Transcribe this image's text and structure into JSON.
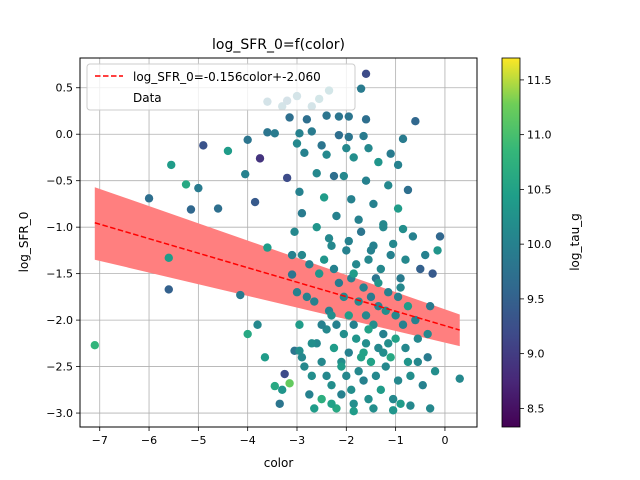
{
  "chart_data": {
    "type": "scatter",
    "title": "log_SFR_0=f(color)",
    "xlabel": "color",
    "ylabel": "log_SFR_0",
    "xlim": [
      -7.4,
      0.65
    ],
    "ylim": [
      -3.15,
      0.82
    ],
    "x_ticks": [
      -7,
      -6,
      -5,
      -4,
      -3,
      -2,
      -1,
      0
    ],
    "y_ticks": [
      -3.0,
      -2.5,
      -2.0,
      -1.5,
      -1.0,
      -0.5,
      0.0,
      0.5
    ],
    "grid": true,
    "legend": {
      "placement": "top-left",
      "entries": [
        "log_SFR_0=-0.156color+-2.060",
        "Data"
      ]
    },
    "fit_line": {
      "slope": -0.156,
      "intercept": -2.06,
      "x_range": [
        -7.1,
        0.3
      ],
      "color": "#ff0000",
      "style": "dashed"
    },
    "confidence_band": {
      "color": "#ff7f7f",
      "x": [
        -7.1,
        0.3
      ],
      "lower": [
        -1.35,
        -2.28
      ],
      "upper": [
        -0.57,
        -1.94
      ]
    },
    "colorbar": {
      "label": "log_tau_g",
      "range": [
        8.33,
        11.7
      ],
      "ticks": [
        8.5,
        9.0,
        9.5,
        10.0,
        10.5,
        11.0,
        11.5
      ],
      "colormap": "viridis"
    },
    "points": [
      [
        -7.1,
        -2.27,
        10.8
      ],
      [
        -6.0,
        -0.69,
        9.7
      ],
      [
        -5.6,
        -1.67,
        9.5
      ],
      [
        -5.6,
        -1.33,
        10.4
      ],
      [
        -5.55,
        -0.33,
        10.4
      ],
      [
        -5.25,
        -0.54,
        10.6
      ],
      [
        -5.15,
        -0.81,
        9.6
      ],
      [
        -5.0,
        -0.58,
        9.9
      ],
      [
        -4.9,
        -0.12,
        9.3
      ],
      [
        -4.6,
        -0.8,
        9.7
      ],
      [
        -4.4,
        -0.18,
        10.4
      ],
      [
        -4.15,
        -1.73,
        9.9
      ],
      [
        -4.05,
        -0.43,
        10.0
      ],
      [
        -4.0,
        -2.15,
        10.6
      ],
      [
        -3.8,
        -2.05,
        10.1
      ],
      [
        -3.75,
        -0.26,
        8.9
      ],
      [
        -3.85,
        -0.73,
        9.4
      ],
      [
        -3.65,
        -2.4,
        10.4
      ],
      [
        -3.6,
        -1.22,
        10.4
      ],
      [
        -3.45,
        -2.71,
        10.6
      ],
      [
        -3.25,
        -2.58,
        9.2
      ],
      [
        -3.2,
        -0.47,
        9.2
      ],
      [
        -3.15,
        -2.68,
        11.2
      ],
      [
        -3.1,
        -1.3,
        10.0
      ],
      [
        -3.1,
        -1.51,
        9.8
      ],
      [
        -3.05,
        -2.33,
        9.8
      ],
      [
        -3.0,
        -1.7,
        10.0
      ],
      [
        -2.95,
        -2.05,
        10.4
      ],
      [
        -2.95,
        -2.33,
        10.2
      ],
      [
        -2.9,
        -1.3,
        10.1
      ],
      [
        -2.9,
        -0.85,
        9.9
      ],
      [
        -2.85,
        -2.5,
        10.1
      ],
      [
        -2.8,
        -1.75,
        10.0
      ],
      [
        -2.75,
        -2.8,
        10.0
      ],
      [
        -2.7,
        -2.6,
        10.2
      ],
      [
        -2.65,
        -1.8,
        10.0
      ],
      [
        -2.6,
        -2.25,
        10.1
      ],
      [
        -2.55,
        -1.5,
        10.3
      ],
      [
        -2.5,
        -2.45,
        10.1
      ],
      [
        -2.5,
        -2.85,
        10.7
      ],
      [
        -2.45,
        -1.35,
        10.3
      ],
      [
        -2.4,
        -2.1,
        10.1
      ],
      [
        -2.4,
        -2.6,
        10.1
      ],
      [
        -2.35,
        -1.9,
        10.0
      ],
      [
        -2.3,
        -1.2,
        10.1
      ],
      [
        -2.3,
        -2.7,
        10.2
      ],
      [
        -2.25,
        -0.45,
        9.7
      ],
      [
        -2.25,
        -2.3,
        10.4
      ],
      [
        -2.2,
        -2.05,
        10.0
      ],
      [
        -2.2,
        -2.95,
        10.6
      ],
      [
        -2.15,
        -1.6,
        9.9
      ],
      [
        -2.1,
        -2.45,
        10.2
      ],
      [
        -2.1,
        -2.8,
        10.0
      ],
      [
        -2.05,
        -1.75,
        10.1
      ],
      [
        -2.05,
        -2.15,
        10.2
      ],
      [
        -2.0,
        -1.25,
        10.0
      ],
      [
        -2.0,
        -2.6,
        10.1
      ],
      [
        -1.95,
        -1.95,
        10.4
      ],
      [
        -1.95,
        -2.35,
        10.0
      ],
      [
        -1.9,
        -1.55,
        10.0
      ],
      [
        -1.9,
        -2.75,
        10.2
      ],
      [
        -1.85,
        -2.05,
        10.0
      ],
      [
        -1.85,
        -2.9,
        10.2
      ],
      [
        -1.8,
        -1.4,
        10.1
      ],
      [
        -1.8,
        -2.2,
        10.3
      ],
      [
        -1.75,
        -1.8,
        10.1
      ],
      [
        -1.75,
        -2.55,
        10.1
      ],
      [
        -1.7,
        -1.05,
        9.8
      ],
      [
        -1.7,
        -2.4,
        10.5
      ],
      [
        -1.65,
        -1.65,
        10.0
      ],
      [
        -1.65,
        -2.65,
        10.0
      ],
      [
        -1.6,
        -1.95,
        10.1
      ],
      [
        -1.6,
        -2.25,
        10.2
      ],
      [
        -1.55,
        -1.35,
        10.1
      ],
      [
        -1.55,
        -2.85,
        10.2
      ],
      [
        -1.5,
        -2.45,
        10.5
      ],
      [
        -1.5,
        -1.75,
        9.9
      ],
      [
        -1.45,
        -2.05,
        10.2
      ],
      [
        -1.45,
        -1.2,
        10.0
      ],
      [
        -1.4,
        -2.6,
        10.1
      ],
      [
        -1.4,
        -1.55,
        9.8
      ],
      [
        -1.35,
        -2.3,
        10.1
      ],
      [
        -1.35,
        -1.85,
        10.0
      ],
      [
        -1.3,
        -2.75,
        10.4
      ],
      [
        -1.3,
        -1.45,
        10.1
      ],
      [
        -1.25,
        -2.15,
        10.0
      ],
      [
        -1.25,
        -1.0,
        10.1
      ],
      [
        -1.2,
        -1.9,
        10.2
      ],
      [
        -1.2,
        -2.5,
        10.1
      ],
      [
        -1.15,
        -1.7,
        10.0
      ],
      [
        -1.1,
        -2.4,
        10.6
      ],
      [
        -1.1,
        -1.3,
        10.0
      ],
      [
        -1.05,
        -2.85,
        10.1
      ],
      [
        -1.0,
        -1.95,
        10.1
      ],
      [
        -1.0,
        -2.2,
        10.5
      ],
      [
        -0.95,
        -1.75,
        10.0
      ],
      [
        -0.95,
        -2.65,
        10.1
      ],
      [
        -0.9,
        -1.55,
        9.9
      ],
      [
        -0.9,
        -2.9,
        10.4
      ],
      [
        -0.85,
        -2.05,
        10.0
      ],
      [
        -0.8,
        -1.35,
        10.1
      ],
      [
        -0.8,
        -2.3,
        10.1
      ],
      [
        -0.75,
        -1.85,
        10.4
      ],
      [
        -0.7,
        -2.6,
        10.2
      ],
      [
        -0.65,
        -1.1,
        10.0
      ],
      [
        -0.6,
        -2.0,
        10.0
      ],
      [
        -0.55,
        -2.45,
        10.1
      ],
      [
        -0.5,
        -1.45,
        9.5
      ],
      [
        -0.45,
        -2.7,
        10.0
      ],
      [
        -0.4,
        -1.3,
        10.0
      ],
      [
        -0.35,
        -2.15,
        10.1
      ],
      [
        -0.3,
        -1.85,
        9.9
      ],
      [
        -0.3,
        -2.95,
        10.1
      ],
      [
        -0.25,
        -1.5,
        9.4
      ],
      [
        -0.2,
        -2.55,
        10.2
      ],
      [
        -0.15,
        -1.25,
        10.3
      ],
      [
        -0.1,
        -1.1,
        9.6
      ],
      [
        0.3,
        -2.63,
        10.1
      ],
      [
        -1.6,
        0.65,
        9.2
      ],
      [
        -1.7,
        0.49,
        9.9
      ],
      [
        -2.35,
        0.47,
        10.0
      ],
      [
        -2.55,
        0.38,
        10.0
      ],
      [
        -3.0,
        0.41,
        9.9
      ],
      [
        -3.3,
        0.3,
        9.9
      ],
      [
        -3.2,
        0.36,
        9.7
      ],
      [
        -2.7,
        0.3,
        9.9
      ],
      [
        -3.6,
        0.35,
        9.8
      ],
      [
        -2.4,
        0.2,
        9.8
      ],
      [
        -2.15,
        0.19,
        9.8
      ],
      [
        -1.95,
        0.19,
        9.8
      ],
      [
        -3.15,
        0.18,
        9.7
      ],
      [
        -2.8,
        0.16,
        9.7
      ],
      [
        -1.6,
        0.16,
        9.7
      ],
      [
        -0.6,
        0.14,
        9.6
      ],
      [
        -2.7,
        0.03,
        9.9
      ],
      [
        -3.6,
        0.02,
        9.8
      ],
      [
        -3.45,
        0.01,
        9.9
      ],
      [
        -2.95,
        0.01,
        10.0
      ],
      [
        -2.15,
        -0.01,
        9.7
      ],
      [
        -1.95,
        -0.03,
        9.8
      ],
      [
        -1.65,
        -0.02,
        9.9
      ],
      [
        -0.85,
        -0.05,
        9.9
      ],
      [
        -4.0,
        -0.06,
        9.8
      ],
      [
        -3.0,
        -0.1,
        10.1
      ],
      [
        -2.5,
        -0.12,
        9.8
      ],
      [
        -2.0,
        -0.15,
        10.1
      ],
      [
        -1.55,
        -0.15,
        10.1
      ],
      [
        -1.1,
        -0.21,
        9.9
      ],
      [
        -2.85,
        -0.2,
        10.0
      ],
      [
        -2.4,
        -0.22,
        10.1
      ],
      [
        -1.85,
        -0.25,
        10.2
      ],
      [
        -1.35,
        -0.3,
        10.3
      ],
      [
        -0.95,
        -0.33,
        10.0
      ],
      [
        -2.6,
        -0.42,
        10.1
      ],
      [
        -2.05,
        -0.45,
        10.1
      ],
      [
        -1.6,
        -0.5,
        10.0
      ],
      [
        -1.15,
        -0.55,
        10.1
      ],
      [
        -0.75,
        -0.6,
        9.7
      ],
      [
        -2.95,
        -0.62,
        10.0
      ],
      [
        -2.45,
        -0.68,
        10.4
      ],
      [
        -1.9,
        -0.7,
        10.0
      ],
      [
        -1.45,
        -0.75,
        10.0
      ],
      [
        -0.95,
        -0.8,
        10.4
      ],
      [
        -2.2,
        -0.88,
        10.0
      ],
      [
        -1.75,
        -0.92,
        10.0
      ],
      [
        -1.25,
        -0.97,
        10.1
      ],
      [
        -0.85,
        -1.02,
        10.2
      ],
      [
        -2.6,
        -1.0,
        10.3
      ],
      [
        -3.05,
        -1.05,
        10.1
      ],
      [
        -2.35,
        -1.12,
        10.1
      ],
      [
        -1.95,
        -1.15,
        10.0
      ],
      [
        -1.5,
        -1.25,
        10.0
      ],
      [
        -1.05,
        -1.18,
        10.1
      ],
      [
        -2.75,
        -1.4,
        10.0
      ],
      [
        -2.25,
        -1.45,
        10.0
      ],
      [
        -1.85,
        -1.5,
        10.4
      ],
      [
        -1.35,
        -1.6,
        10.3
      ],
      [
        -0.9,
        -1.65,
        10.1
      ],
      [
        -3.3,
        -2.75,
        10.3
      ],
      [
        -3.35,
        -2.9,
        9.8
      ],
      [
        -2.65,
        -2.95,
        10.4
      ],
      [
        -2.3,
        -2.9,
        10.5
      ],
      [
        -1.85,
        -2.98,
        10.4
      ],
      [
        -1.45,
        -2.95,
        10.2
      ],
      [
        -1.05,
        -2.97,
        10.3
      ],
      [
        -0.7,
        -2.92,
        10.1
      ],
      [
        -2.9,
        -2.4,
        10.1
      ],
      [
        -2.7,
        -2.25,
        10.2
      ],
      [
        -2.1,
        -2.5,
        10.4
      ],
      [
        -1.65,
        -2.35,
        10.5
      ],
      [
        -1.15,
        -2.25,
        10.2
      ],
      [
        -0.55,
        -2.2,
        10.1
      ],
      [
        -0.35,
        -2.4,
        9.9
      ],
      [
        -2.5,
        -2.05,
        10.0
      ],
      [
        -2.3,
        -1.95,
        10.2
      ],
      [
        -1.55,
        -2.1,
        10.5
      ],
      [
        -1.25,
        -2.35,
        10.2
      ],
      [
        -0.75,
        -2.45,
        10.3
      ]
    ]
  }
}
